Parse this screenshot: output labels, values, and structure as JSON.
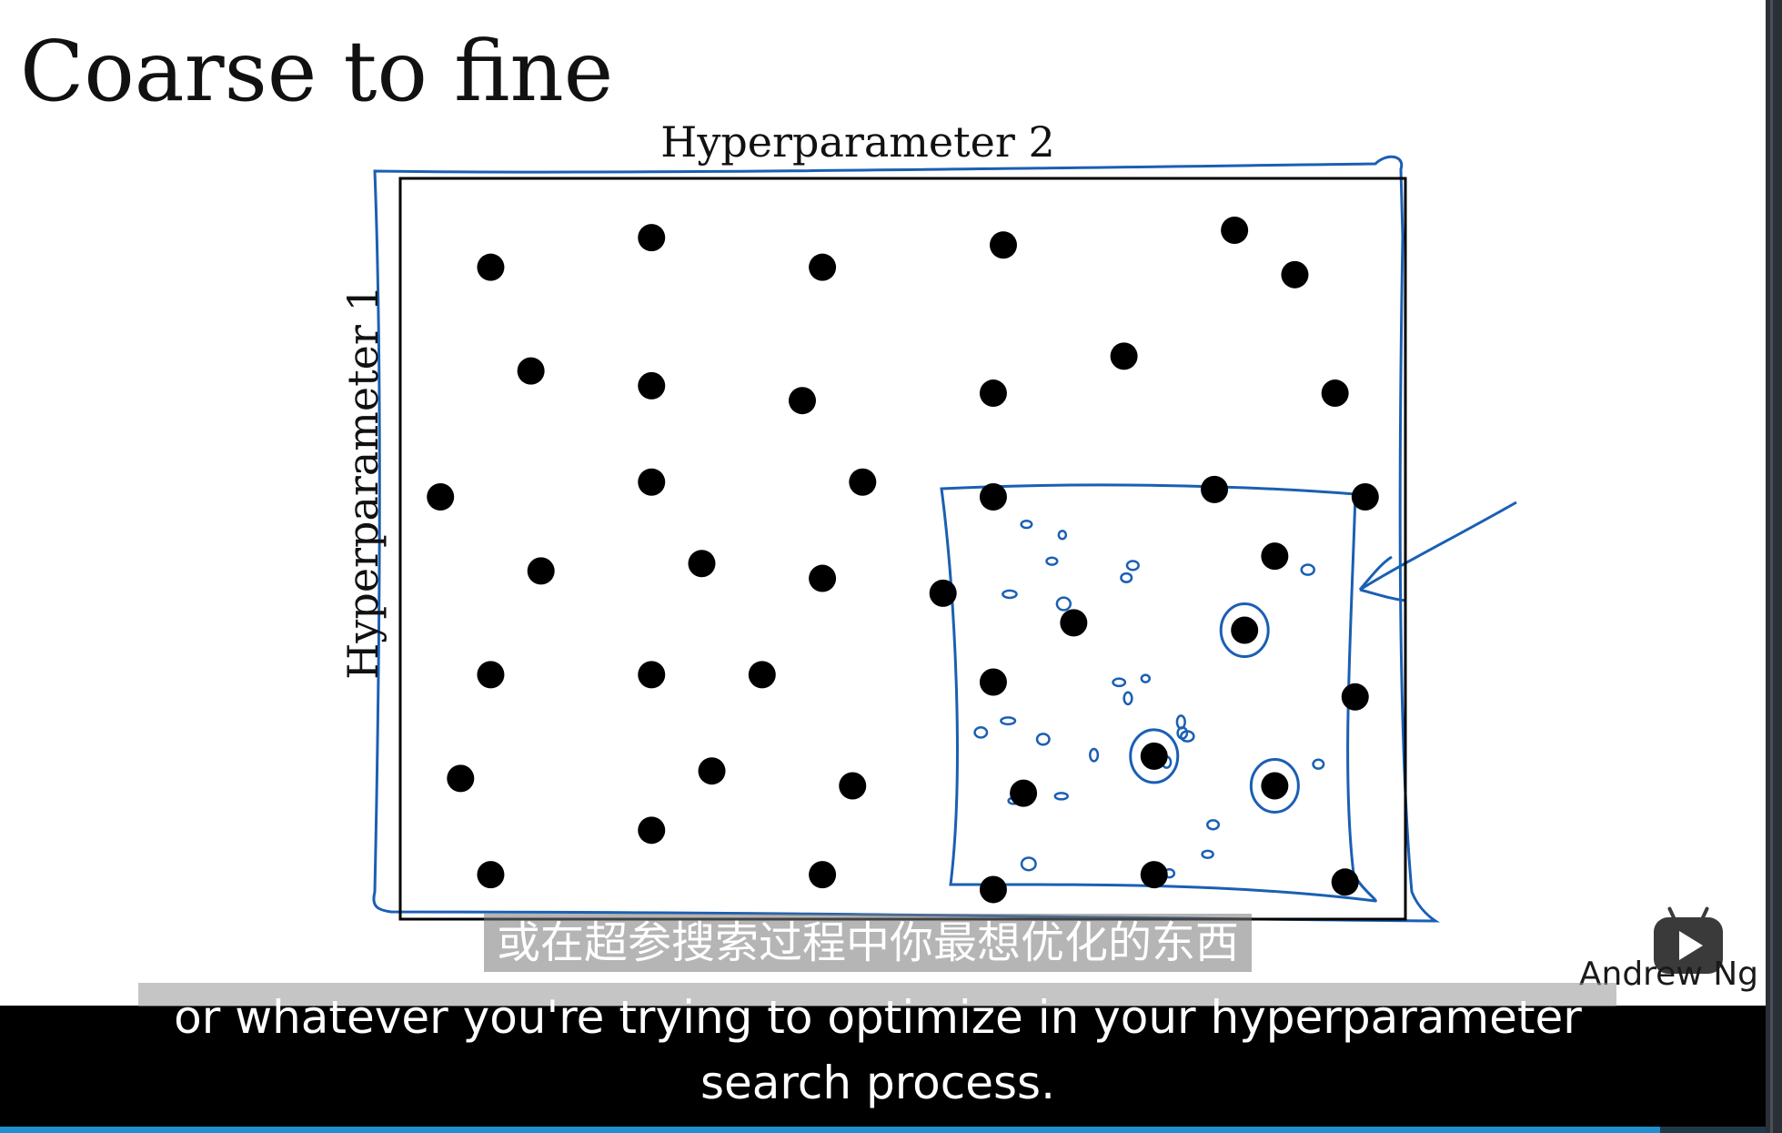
{
  "slide": {
    "title": "Coarse to fine",
    "author": "Andrew Ng"
  },
  "chart_data": {
    "type": "scatter",
    "title": "",
    "xlabel": "Hyperparameter 2",
    "ylabel": "Hyperparameter 1",
    "xlim": [
      0,
      1
    ],
    "ylim": [
      0,
      1
    ],
    "grid": false,
    "series": [
      {
        "values": [
          [
            0.09,
            0.88
          ],
          [
            0.25,
            0.92
          ],
          [
            0.42,
            0.88
          ],
          [
            0.6,
            0.91
          ],
          [
            0.83,
            0.93
          ],
          [
            0.89,
            0.87
          ],
          [
            0.13,
            0.74
          ],
          [
            0.25,
            0.72
          ],
          [
            0.4,
            0.7
          ],
          [
            0.59,
            0.71
          ],
          [
            0.72,
            0.76
          ],
          [
            0.93,
            0.71
          ],
          [
            0.04,
            0.57
          ],
          [
            0.25,
            0.59
          ],
          [
            0.46,
            0.59
          ],
          [
            0.59,
            0.57
          ],
          [
            0.81,
            0.58
          ],
          [
            0.96,
            0.57
          ],
          [
            0.14,
            0.47
          ],
          [
            0.3,
            0.48
          ],
          [
            0.42,
            0.46
          ],
          [
            0.54,
            0.44
          ],
          [
            0.87,
            0.49
          ],
          [
            0.67,
            0.4
          ],
          [
            0.84,
            0.39
          ],
          [
            0.09,
            0.33
          ],
          [
            0.25,
            0.33
          ],
          [
            0.36,
            0.33
          ],
          [
            0.59,
            0.32
          ],
          [
            0.95,
            0.3
          ],
          [
            0.06,
            0.19
          ],
          [
            0.31,
            0.2
          ],
          [
            0.45,
            0.18
          ],
          [
            0.62,
            0.17
          ],
          [
            0.75,
            0.22
          ],
          [
            0.87,
            0.18
          ],
          [
            0.25,
            0.12
          ],
          [
            0.09,
            0.06
          ],
          [
            0.42,
            0.06
          ],
          [
            0.59,
            0.04
          ],
          [
            0.75,
            0.06
          ],
          [
            0.94,
            0.05
          ]
        ]
      }
    ],
    "circled_points": [
      [
        0.84,
        0.39
      ],
      [
        0.75,
        0.22
      ],
      [
        0.87,
        0.18
      ]
    ],
    "fine_region": {
      "x": [
        0.54,
        0.95
      ],
      "y": [
        0.02,
        0.57
      ]
    },
    "colors": {
      "points": "#000000",
      "annotation": "#1a5fb4"
    }
  },
  "subtitles": {
    "chinese": "或在超参搜索过程中你最想优化的东西",
    "english": "or whatever you're trying to optimize in your hyperparameter search process."
  },
  "player": {
    "logo_icon": "bilibili-tv-icon",
    "progress": 0.94
  }
}
